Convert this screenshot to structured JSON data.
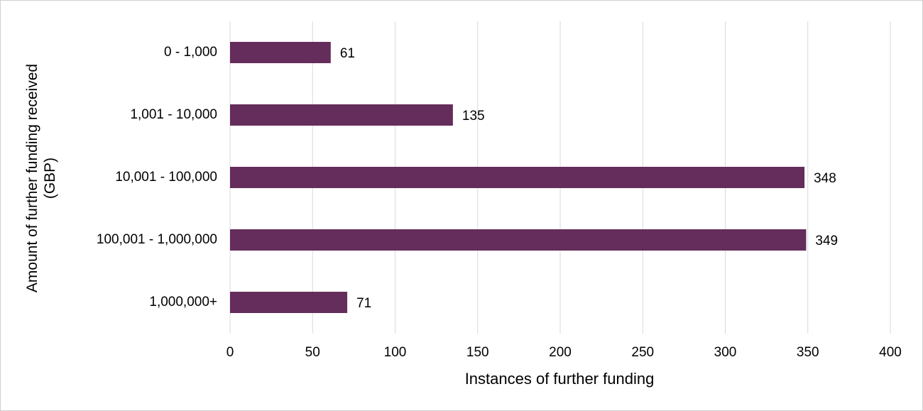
{
  "chart_data": {
    "type": "bar",
    "orientation": "horizontal",
    "x_label": "Instances of further funding",
    "y_label": "Amount of further funding received (GBP)",
    "categories": [
      "0 - 1,000",
      "1,001 - 10,000",
      "10,001 - 100,000",
      "100,001 - 1,000,000",
      "1,000,000+"
    ],
    "values": [
      61,
      135,
      348,
      349,
      71
    ],
    "color": "#652d5b",
    "xlim": [
      0,
      400
    ],
    "xticks": [
      0,
      50,
      100,
      150,
      200,
      250,
      300,
      350,
      400
    ],
    "grid": true
  }
}
